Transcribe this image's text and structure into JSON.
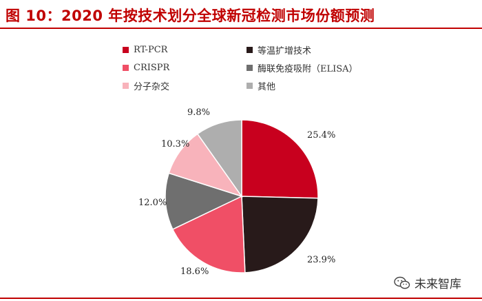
{
  "header": {
    "title": "图 10：2020 年按技术划分全球新冠检测市场份额预测"
  },
  "watermark": {
    "text": "未来智库",
    "icon": "wechat-icon"
  },
  "colors": {
    "title": "#c00000",
    "rules": "#c00000"
  },
  "chart_data": {
    "type": "pie",
    "start_angle_deg": 0,
    "direction": "clockwise",
    "legend_position": "top",
    "slices": [
      {
        "name": "RT-PCR",
        "value": 25.4,
        "label": "25.4%",
        "color": "#c8001e"
      },
      {
        "name": "等温扩增技术",
        "value": 23.9,
        "label": "23.9%",
        "color": "#281a1a"
      },
      {
        "name": "CRISPR",
        "value": 18.6,
        "label": "18.6%",
        "color": "#f04f66"
      },
      {
        "name": "酶联免疫吸附（ELISA）",
        "value": 12.0,
        "label": "12.0%",
        "color": "#6f6f6f"
      },
      {
        "name": "分子杂交",
        "value": 10.3,
        "label": "10.3%",
        "color": "#f8b3bb"
      },
      {
        "name": "其他",
        "value": 9.8,
        "label": "9.8%",
        "color": "#aeaeae"
      }
    ],
    "legend_order": [
      0,
      1,
      2,
      3,
      4,
      5
    ]
  }
}
